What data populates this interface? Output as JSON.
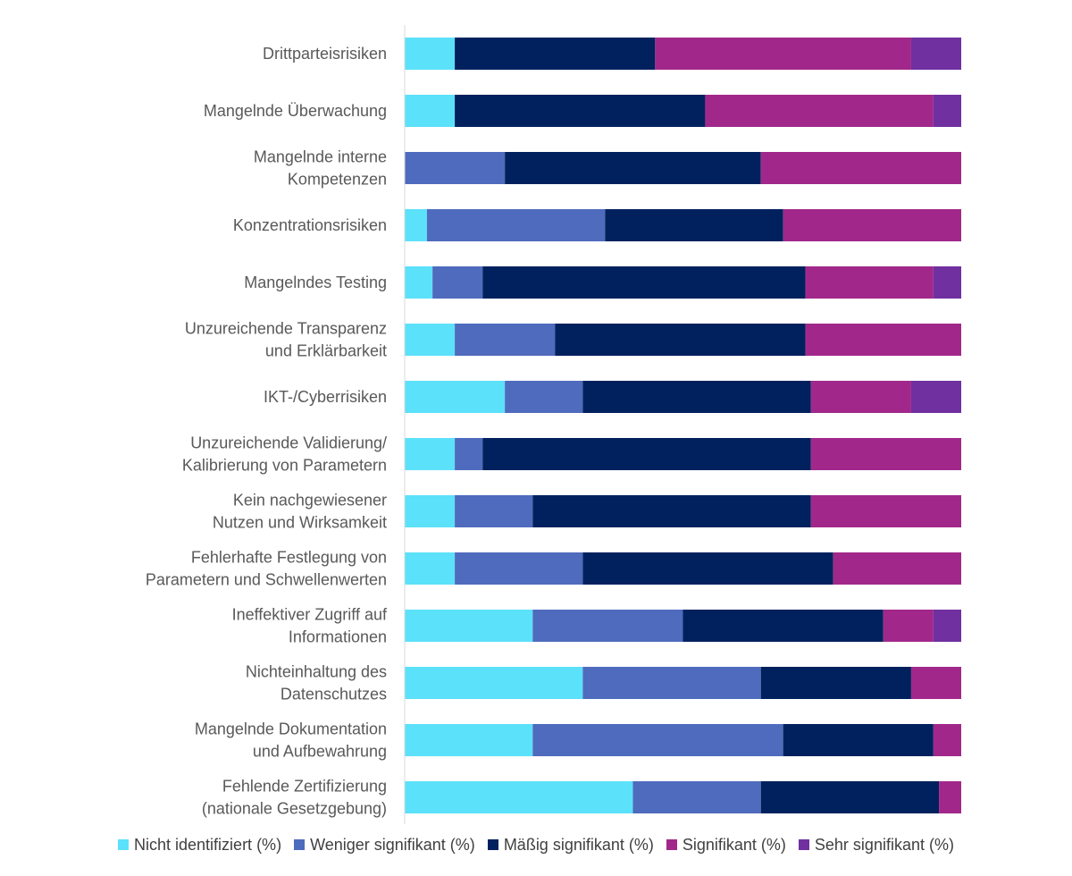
{
  "chart_data": {
    "type": "bar",
    "orientation": "horizontal",
    "stacked": true,
    "unit": "%",
    "xlim": [
      0,
      100
    ],
    "grid": false,
    "legend_position": "bottom",
    "categories": [
      [
        "Drittparteisrisiken"
      ],
      [
        "Mangelnde Überwachung"
      ],
      [
        "Mangelnde interne",
        "Kompetenzen"
      ],
      [
        "Konzentrationsrisiken"
      ],
      [
        "Mangelndes Testing"
      ],
      [
        "Unzureichende Transparenz",
        "und Erklärbarkeit"
      ],
      [
        "IKT-/Cyberrisiken"
      ],
      [
        "Unzureichende Validierung/",
        "Kalibrierung von Parametern"
      ],
      [
        "Kein nachgewiesener",
        "Nutzen und Wirksamkeit"
      ],
      [
        "Fehlerhafte Festlegung von",
        "Parametern und Schwellenwerten"
      ],
      [
        "Ineffektiver Zugriff auf",
        "Informationen"
      ],
      [
        "Nichteinhaltung des",
        "Datenschutzes"
      ],
      [
        "Mangelnde Dokumentation",
        "und Aufbewahrung"
      ],
      [
        "Fehlende Zertifizierung",
        "(nationale  Gesetzgebung)"
      ]
    ],
    "series": [
      {
        "name": "Nicht identifiziert (%)",
        "color": "#5CE1FA",
        "values": [
          9,
          9,
          0,
          4,
          5,
          9,
          18,
          9,
          9,
          9,
          23,
          32,
          23,
          41
        ]
      },
      {
        "name": "Weniger signifikant (%)",
        "color": "#4F6BBD",
        "values": [
          0,
          0,
          18,
          32,
          9,
          18,
          14,
          5,
          14,
          23,
          27,
          32,
          45,
          23
        ]
      },
      {
        "name": "Mäßig signifikant (%)",
        "color": "#00215E",
        "values": [
          36,
          45,
          46,
          32,
          58,
          45,
          41,
          59,
          50,
          45,
          36,
          27,
          27,
          32
        ]
      },
      {
        "name": "Signifikant (%)",
        "color": "#A1288A",
        "values": [
          46,
          41,
          36,
          32,
          23,
          28,
          18,
          27,
          27,
          23,
          9,
          9,
          5,
          4
        ]
      },
      {
        "name": "Sehr signifikant (%)",
        "color": "#7030A0",
        "values": [
          9,
          5,
          0,
          0,
          5,
          0,
          9,
          0,
          0,
          0,
          5,
          0,
          0,
          0
        ]
      }
    ]
  }
}
